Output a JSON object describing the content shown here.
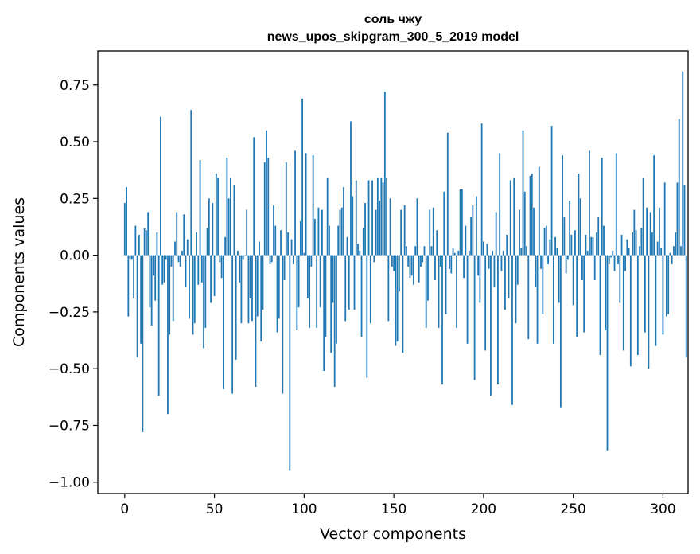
{
  "chart_data": {
    "type": "bar",
    "title": "соль чжу",
    "subtitle": "news_upos_skipgram_300_5_2019 model",
    "xlabel": "Vector components",
    "ylabel": "Components values",
    "xlim": [
      -15,
      314
    ],
    "ylim": [
      -1.05,
      0.9
    ],
    "xticks": [
      0,
      50,
      100,
      150,
      200,
      250,
      300
    ],
    "yticks": [
      -1.0,
      -0.75,
      -0.5,
      -0.25,
      0.0,
      0.25,
      0.5,
      0.75
    ],
    "ytick_labels": [
      "−1.00",
      "−0.75",
      "−0.50",
      "−0.25",
      "0.00",
      "0.25",
      "0.50",
      "0.75"
    ],
    "grid": false,
    "bar_color": "#1f77b4",
    "values": [
      0.23,
      0.3,
      -0.27,
      -0.02,
      -0.02,
      -0.19,
      0.13,
      -0.45,
      0.09,
      -0.39,
      -0.78,
      0.12,
      0.11,
      0.19,
      -0.23,
      -0.31,
      -0.09,
      -0.2,
      0.1,
      -0.62,
      0.61,
      -0.13,
      -0.12,
      -0.02,
      -0.7,
      -0.35,
      -0.05,
      -0.29,
      0.06,
      0.19,
      -0.03,
      -0.05,
      0.02,
      0.18,
      -0.14,
      0.07,
      -0.28,
      0.64,
      -0.35,
      -0.3,
      0.1,
      -0.13,
      0.42,
      -0.12,
      -0.41,
      -0.32,
      0.12,
      0.25,
      -0.21,
      0.23,
      -0.18,
      0.36,
      0.34,
      -0.03,
      -0.1,
      -0.59,
      0.08,
      0.43,
      0.25,
      0.34,
      -0.61,
      0.31,
      -0.46,
      0.02,
      -0.12,
      -0.3,
      -0.02,
      0.0,
      0.2,
      -0.3,
      -0.19,
      -0.29,
      0.52,
      -0.58,
      -0.27,
      0.06,
      -0.38,
      -0.24,
      0.41,
      0.55,
      0.43,
      -0.04,
      -0.03,
      0.22,
      0.13,
      -0.34,
      -0.28,
      0.11,
      -0.61,
      -0.11,
      0.41,
      0.1,
      -0.95,
      0.07,
      -0.04,
      0.46,
      -0.33,
      -0.23,
      0.15,
      0.69,
      0.01,
      0.45,
      -0.19,
      -0.32,
      -0.05,
      0.44,
      0.16,
      -0.32,
      0.21,
      -0.23,
      0.2,
      -0.51,
      -0.36,
      0.34,
      0.13,
      -0.43,
      -0.21,
      -0.58,
      -0.39,
      0.13,
      0.2,
      0.21,
      0.3,
      -0.29,
      0.08,
      -0.24,
      0.59,
      0.26,
      -0.24,
      0.33,
      0.05,
      0.02,
      -0.36,
      0.12,
      0.23,
      -0.54,
      0.33,
      -0.3,
      0.33,
      -0.03,
      0.2,
      0.34,
      0.24,
      0.34,
      0.32,
      0.72,
      0.34,
      -0.29,
      0.25,
      -0.05,
      -0.07,
      -0.4,
      -0.38,
      -0.16,
      0.2,
      -0.43,
      0.22,
      0.04,
      -0.05,
      -0.1,
      -0.09,
      -0.13,
      0.04,
      0.25,
      -0.12,
      -0.05,
      -0.03,
      0.04,
      -0.32,
      -0.2,
      0.2,
      0.04,
      0.21,
      -0.11,
      0.11,
      -0.32,
      -0.05,
      -0.57,
      0.28,
      -0.26,
      0.54,
      -0.06,
      -0.08,
      0.03,
      0.01,
      -0.32,
      0.02,
      0.29,
      0.29,
      -0.1,
      0.13,
      -0.39,
      0.02,
      0.17,
      0.22,
      -0.55,
      0.26,
      -0.09,
      -0.21,
      0.58,
      0.06,
      -0.42,
      0.05,
      -0.06,
      -0.62,
      0.02,
      -0.14,
      0.19,
      -0.57,
      0.45,
      -0.07,
      0.02,
      -0.24,
      0.09,
      -0.19,
      0.33,
      -0.66,
      0.34,
      -0.3,
      -0.13,
      0.2,
      0.03,
      0.55,
      0.28,
      0.04,
      -0.37,
      0.35,
      0.36,
      0.21,
      -0.14,
      -0.39,
      0.39,
      -0.06,
      -0.26,
      0.12,
      0.13,
      -0.04,
      0.07,
      0.57,
      -0.39,
      0.08,
      0.03,
      -0.21,
      -0.67,
      0.44,
      0.17,
      -0.08,
      -0.02,
      0.24,
      0.09,
      -0.22,
      0.11,
      -0.36,
      0.36,
      0.25,
      -0.11,
      -0.34,
      0.09,
      0.02,
      0.46,
      0.08,
      0.08,
      -0.11,
      0.1,
      0.17,
      -0.44,
      0.43,
      0.13,
      -0.33,
      -0.86,
      -0.04,
      -0.01,
      0.02,
      -0.07,
      0.45,
      -0.04,
      -0.21,
      0.09,
      -0.42,
      -0.07,
      0.07,
      0.03,
      -0.49,
      0.1,
      0.2,
      0.11,
      -0.44,
      0.04,
      0.12,
      0.34,
      -0.34,
      0.21,
      -0.5,
      0.19,
      0.1,
      0.44,
      -0.4,
      0.06,
      0.21,
      0.03,
      -0.35,
      0.32,
      -0.27,
      -0.26,
      0.01,
      -0.04,
      0.04,
      0.1,
      0.32,
      0.6,
      0.04,
      0.81,
      0.31,
      -0.45
    ]
  }
}
